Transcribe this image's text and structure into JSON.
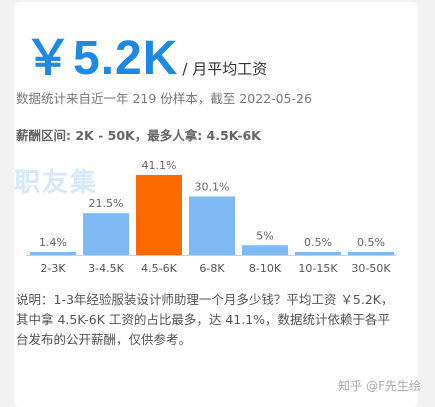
{
  "salary": {
    "value": "￥5.2K",
    "unit": "/ 月平均工资"
  },
  "stat_text": "数据统计来自近一年 219 份样本，截至 2022-05-26",
  "range_text": "薪酬区间: 2K - 50K，最多人拿: 4.5K-6K",
  "watermark": "职友集",
  "colors": {
    "accent": "#1e88e5",
    "bar": "#7fbaf5",
    "highlight": "#ff6a00"
  },
  "chart_data": {
    "type": "bar",
    "categories": [
      "2-3K",
      "3-4.5K",
      "4.5-6K",
      "6-8K",
      "8-10K",
      "10-15K",
      "30-50K"
    ],
    "values": [
      1.4,
      21.5,
      41.1,
      30.1,
      5,
      0.5,
      0.5
    ],
    "labels": [
      "1.4%",
      "21.5%",
      "41.1%",
      "30.1%",
      "5%",
      "0.5%",
      "0.5%"
    ],
    "highlight_index": 2,
    "title": "",
    "xlabel": "",
    "ylabel": ""
  },
  "description": "说明：1-3年经验服装设计师助理一个月多少钱？平均工资 ￥5.2K，其中拿 4.5K-6K 工资的占比最多，达 41.1%，数据统计依赖于各平台发布的公开薪酬，仅供参考。",
  "footer": "知乎 @F先生绘"
}
